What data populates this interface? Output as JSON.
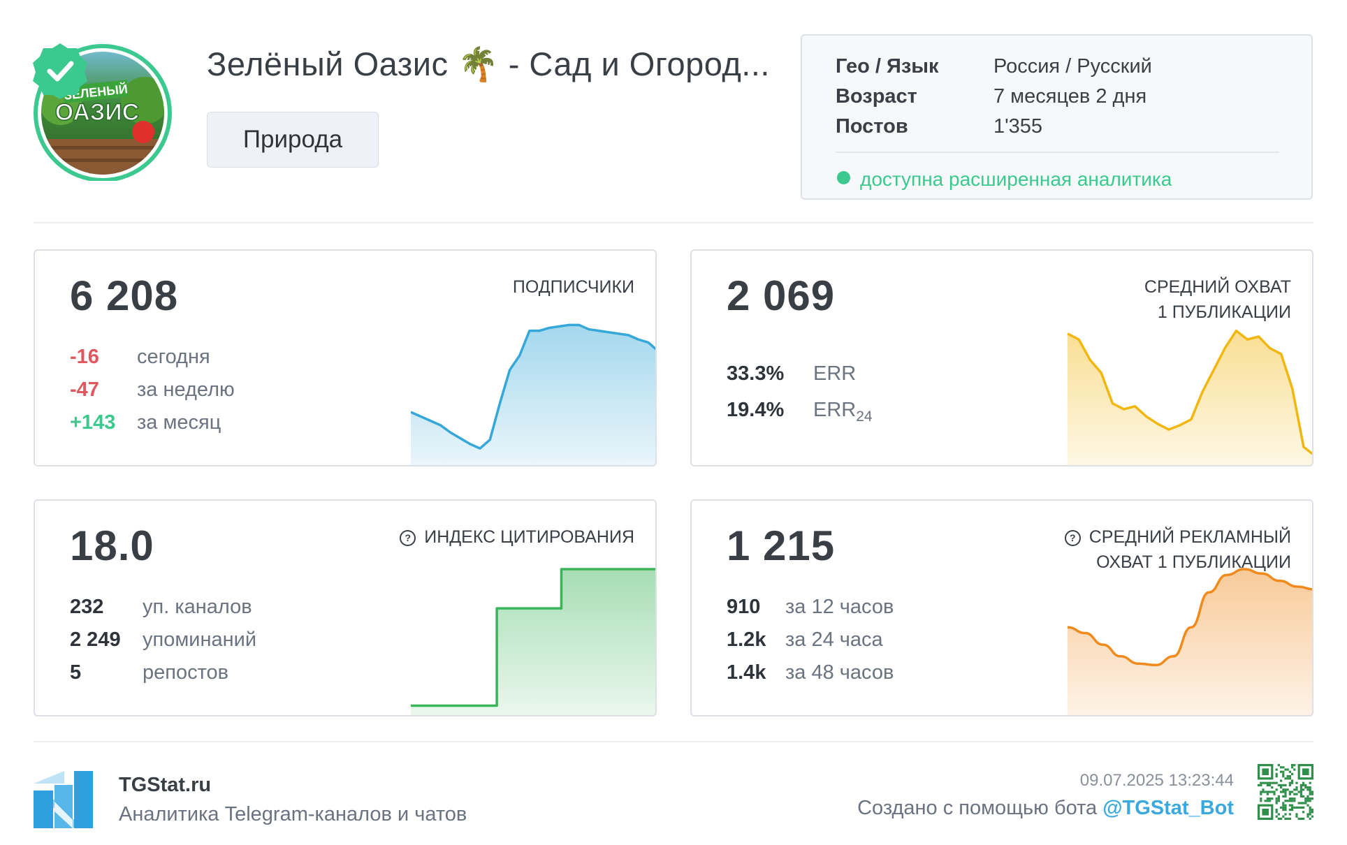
{
  "channel": {
    "name": "Зелёный Оазис 🌴 - Сад и Огород...",
    "category": "Природа",
    "avatar_text": [
      "ЗЕЛЕНЫЙ",
      "ОАЗИС"
    ],
    "verified_icon": "check-badge-icon"
  },
  "info": {
    "geo_label": "Гео / Язык",
    "geo_value": "Россия / Русский",
    "age_label": "Возраст",
    "age_value": "7 месяцев 2 дня",
    "posts_label": "Постов",
    "posts_value": "1'355",
    "analytics_note": "доступна расширенная аналитика"
  },
  "cards": {
    "subscribers": {
      "value": "6 208",
      "label": "ПОДПИСЧИКИ",
      "stats": [
        {
          "num": "-16",
          "label": "сегодня"
        },
        {
          "num": "-47",
          "label": "за неделю"
        },
        {
          "num": "+143",
          "label": "за месяц"
        }
      ]
    },
    "reach": {
      "value": "2 069",
      "label_line1": "СРЕДНИЙ ОХВАТ",
      "label_line2": "1 ПУБЛИКАЦИИ",
      "err_value": "33.3%",
      "err_label": "ERR",
      "err24_value": "19.4%",
      "err24_label": "ERR",
      "err24_sub": "24"
    },
    "citation": {
      "value": "18.0",
      "label": "ИНДЕКС ЦИТИРОВАНИЯ",
      "stats": [
        {
          "num": "232",
          "label": "уп. каналов"
        },
        {
          "num": "2 249",
          "label": "упоминаний"
        },
        {
          "num": "5",
          "label": "репостов"
        }
      ]
    },
    "ad_reach": {
      "value": "1 215",
      "label_line1": "СРЕДНИЙ РЕКЛАМНЫЙ",
      "label_line2": "ОХВАТ 1 ПУБЛИКАЦИИ",
      "stats": [
        {
          "num": "910",
          "label": "за 12 часов"
        },
        {
          "num": "1.2k",
          "label": "за 24 часа"
        },
        {
          "num": "1.4k",
          "label": "за 48 часов"
        }
      ]
    }
  },
  "footer": {
    "brand": "TGStat.ru",
    "tagline": "Аналитика Telegram-каналов и чатов",
    "timestamp": "09.07.2025 13:23:44",
    "made_with": "Создано с помощью бота",
    "bot": "@TGStat_Bot"
  },
  "colors": {
    "subscribers": "#35a7d8",
    "reach": "#f2b70f",
    "citation": "#3bb55a",
    "ad_reach": "#f08a1c",
    "negative": "#e0575f",
    "positive": "#3cc98f",
    "bot_link": "#3aa9df"
  },
  "chart_data": [
    {
      "type": "area",
      "series": [
        {
          "values": [
            0.36,
            0.33,
            0.3,
            0.27,
            0.22,
            0.18,
            0.14,
            0.11,
            0.17,
            0.42,
            0.65,
            0.75,
            0.92,
            0.92,
            0.94,
            0.95,
            0.96,
            0.96,
            0.93,
            0.92,
            0.91,
            0.9,
            0.89,
            0.86,
            0.84,
            0.78
          ]
        }
      ]
    },
    {
      "type": "area",
      "series": [
        {
          "values": [
            0.9,
            0.86,
            0.72,
            0.63,
            0.42,
            0.38,
            0.4,
            0.33,
            0.28,
            0.24,
            0.27,
            0.31,
            0.5,
            0.65,
            0.8,
            0.92,
            0.86,
            0.88,
            0.8,
            0.76,
            0.52,
            0.12,
            0.06
          ]
        }
      ]
    },
    {
      "type": "area",
      "series": [
        {
          "values": [
            0.06,
            0.06,
            0.06,
            0.06,
            0.06,
            0.06,
            0.06,
            0.06,
            0.73,
            0.73,
            0.73,
            0.73,
            0.73,
            0.73,
            1.0,
            1.0,
            1.0,
            1.0,
            1.0,
            1.0,
            1.0,
            1.0,
            1.0,
            1.0
          ]
        }
      ]
    },
    {
      "type": "area",
      "series": [
        {
          "values": [
            0.6,
            0.56,
            0.48,
            0.4,
            0.35,
            0.34,
            0.4,
            0.6,
            0.84,
            0.96,
            1.0,
            0.97,
            0.92,
            0.88,
            0.86
          ]
        }
      ]
    }
  ]
}
